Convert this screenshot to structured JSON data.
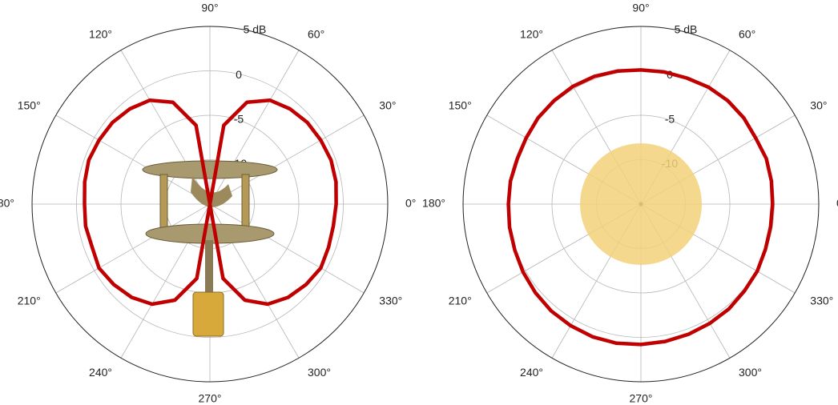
{
  "chart_data": [
    {
      "type": "polar",
      "theta": [
        0,
        10,
        20,
        30,
        40,
        50,
        60,
        70,
        80,
        90,
        100,
        110,
        120,
        130,
        140,
        150,
        160,
        170,
        180,
        190,
        200,
        210,
        220,
        230,
        240,
        250,
        260,
        270,
        280,
        290,
        300,
        310,
        320,
        330,
        340,
        350
      ],
      "series": [
        {
          "color": "#c00000",
          "values": [
            -0.8,
            -0.6,
            -0.5,
            -0.6,
            -0.7,
            -1.0,
            -1.5,
            -2.8,
            -6,
            -15,
            -6,
            -2.8,
            -1.5,
            -1.0,
            -0.7,
            -0.6,
            -0.5,
            -0.7,
            -0.9,
            -0.8,
            -0.9,
            -0.6,
            -0.9,
            -1.3,
            -2,
            -3.5,
            -6.5,
            -15,
            -6.5,
            -3.5,
            -2,
            -1.3,
            -0.9,
            -0.6,
            -0.8,
            -0.9
          ]
        }
      ],
      "rlim": [
        -15,
        5
      ],
      "rticks": [
        -10,
        -5,
        0,
        {
          "value": 5,
          "label": "5 dB"
        }
      ],
      "thetaticks": [
        {
          "value": 0,
          "label": "0°"
        },
        {
          "value": 30,
          "label": "30°"
        },
        {
          "value": 60,
          "label": "60°"
        },
        {
          "value": 90,
          "label": "90°"
        },
        {
          "value": 120,
          "label": "120°"
        },
        {
          "value": 150,
          "label": "150°"
        },
        {
          "value": 180,
          "label": "180°"
        },
        {
          "value": 210,
          "label": "210°"
        },
        {
          "value": 240,
          "label": "240°"
        },
        {
          "value": 270,
          "label": "270°"
        },
        {
          "value": 300,
          "label": "300°"
        },
        {
          "value": 330,
          "label": "330°"
        }
      ]
    },
    {
      "type": "polar",
      "theta": [
        0,
        10,
        20,
        30,
        40,
        50,
        60,
        70,
        80,
        90,
        100,
        110,
        120,
        130,
        140,
        150,
        160,
        170,
        180,
        190,
        200,
        210,
        220,
        230,
        240,
        250,
        260,
        270,
        280,
        290,
        300,
        310,
        320,
        330,
        340,
        350
      ],
      "series": [
        {
          "color": "#c00000",
          "values": [
            -0.2,
            -0.1,
            0,
            -0.1,
            0.1,
            0.2,
            0.2,
            0.1,
            0.1,
            0.1,
            0.2,
            0.3,
            0.3,
            0.2,
            0.1,
            -0.1,
            -0.2,
            -0.1,
            -0.1,
            0,
            0.1,
            0.3,
            0.5,
            0.7,
            0.8,
            0.9,
            0.9,
            0.8,
            0.7,
            0.6,
            0.5,
            0.4,
            0.2,
            0.1,
            -0.1,
            -0.2
          ]
        }
      ],
      "rlim": [
        -15,
        5
      ],
      "rticks": [
        -10,
        -5,
        0,
        {
          "value": 5,
          "label": "5 dB"
        }
      ],
      "thetaticks": [
        {
          "value": 0,
          "label": "0°"
        },
        {
          "value": 30,
          "label": "30°"
        },
        {
          "value": 60,
          "label": "60°"
        },
        {
          "value": 90,
          "label": "90°"
        },
        {
          "value": 120,
          "label": "120°"
        },
        {
          "value": 150,
          "label": "150°"
        },
        {
          "value": 180,
          "label": "180°"
        },
        {
          "value": 210,
          "label": "210°"
        },
        {
          "value": 240,
          "label": "240°"
        },
        {
          "value": 270,
          "label": "270°"
        },
        {
          "value": 300,
          "label": "300°"
        },
        {
          "value": 330,
          "label": "330°"
        }
      ]
    }
  ]
}
